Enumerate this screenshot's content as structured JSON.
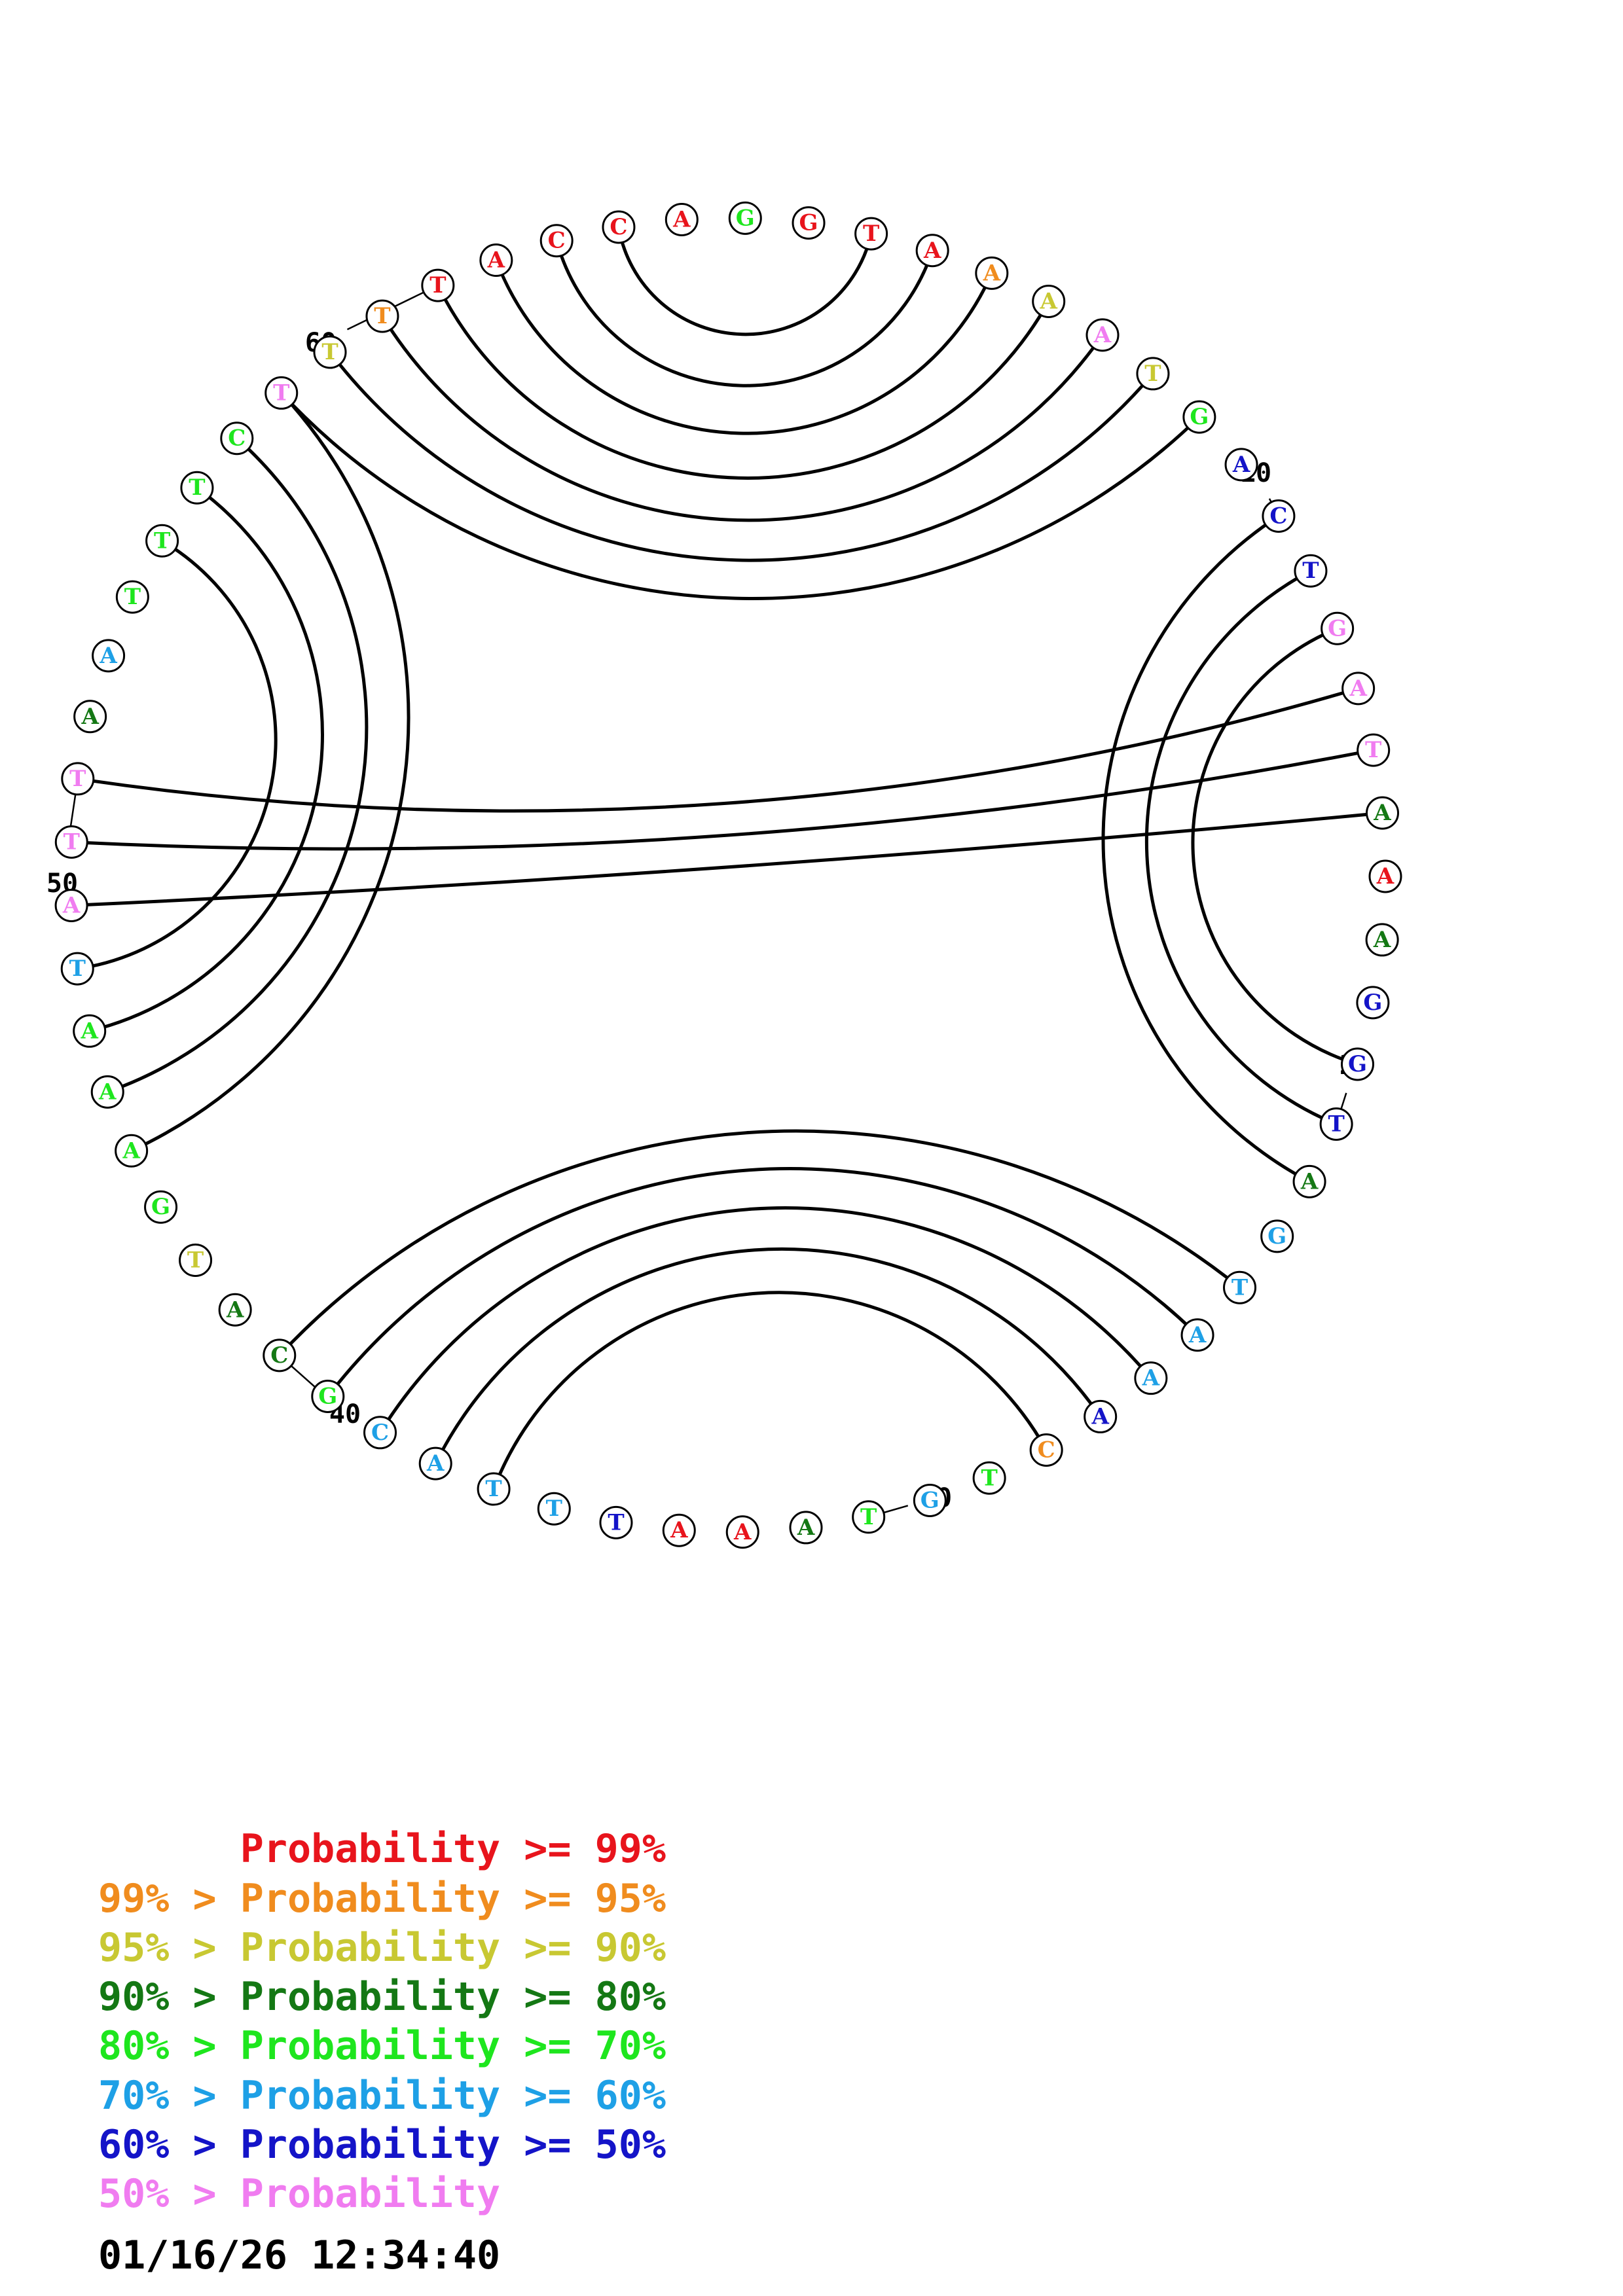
{
  "sequence": [
    {
      "base": "G",
      "cls": 4
    },
    {
      "base": "G",
      "cls": 0
    },
    {
      "base": "T",
      "cls": 0
    },
    {
      "base": "A",
      "cls": 0
    },
    {
      "base": "A",
      "cls": 1
    },
    {
      "base": "A",
      "cls": 2
    },
    {
      "base": "A",
      "cls": 7
    },
    {
      "base": "T",
      "cls": 2
    },
    {
      "base": "G",
      "cls": 4
    },
    {
      "base": "A",
      "cls": 6
    },
    {
      "base": "C",
      "cls": 6
    },
    {
      "base": "T",
      "cls": 6
    },
    {
      "base": "G",
      "cls": 7
    },
    {
      "base": "A",
      "cls": 7
    },
    {
      "base": "T",
      "cls": 7
    },
    {
      "base": "A",
      "cls": 3
    },
    {
      "base": "A",
      "cls": 0
    },
    {
      "base": "A",
      "cls": 3
    },
    {
      "base": "G",
      "cls": 6
    },
    {
      "base": "G",
      "cls": 6
    },
    {
      "base": "T",
      "cls": 6
    },
    {
      "base": "A",
      "cls": 3
    },
    {
      "base": "G",
      "cls": 5
    },
    {
      "base": "T",
      "cls": 5
    },
    {
      "base": "A",
      "cls": 5
    },
    {
      "base": "A",
      "cls": 5
    },
    {
      "base": "A",
      "cls": 6
    },
    {
      "base": "C",
      "cls": 1
    },
    {
      "base": "T",
      "cls": 4
    },
    {
      "base": "G",
      "cls": 5
    },
    {
      "base": "T",
      "cls": 4
    },
    {
      "base": "A",
      "cls": 3
    },
    {
      "base": "A",
      "cls": 0
    },
    {
      "base": "A",
      "cls": 0
    },
    {
      "base": "T",
      "cls": 6
    },
    {
      "base": "T",
      "cls": 5
    },
    {
      "base": "T",
      "cls": 5
    },
    {
      "base": "A",
      "cls": 5
    },
    {
      "base": "C",
      "cls": 5
    },
    {
      "base": "G",
      "cls": 4
    },
    {
      "base": "C",
      "cls": 3
    },
    {
      "base": "A",
      "cls": 3
    },
    {
      "base": "T",
      "cls": 2
    },
    {
      "base": "G",
      "cls": 4
    },
    {
      "base": "A",
      "cls": 4
    },
    {
      "base": "A",
      "cls": 4
    },
    {
      "base": "A",
      "cls": 4
    },
    {
      "base": "T",
      "cls": 5
    },
    {
      "base": "A",
      "cls": 7
    },
    {
      "base": "T",
      "cls": 7
    },
    {
      "base": "T",
      "cls": 7
    },
    {
      "base": "A",
      "cls": 3
    },
    {
      "base": "A",
      "cls": 5
    },
    {
      "base": "T",
      "cls": 4
    },
    {
      "base": "T",
      "cls": 4
    },
    {
      "base": "T",
      "cls": 4
    },
    {
      "base": "C",
      "cls": 4
    },
    {
      "base": "T",
      "cls": 7
    },
    {
      "base": "T",
      "cls": 2
    },
    {
      "base": "T",
      "cls": 1
    },
    {
      "base": "T",
      "cls": 0
    },
    {
      "base": "A",
      "cls": 0
    },
    {
      "base": "C",
      "cls": 0
    },
    {
      "base": "C",
      "cls": 0
    },
    {
      "base": "A",
      "cls": 0
    }
  ],
  "pairs": [
    [
      2,
      63
    ],
    [
      3,
      62
    ],
    [
      4,
      61
    ],
    [
      5,
      60
    ],
    [
      6,
      59
    ],
    [
      7,
      58
    ],
    [
      8,
      57
    ],
    [
      10,
      21
    ],
    [
      11,
      20
    ],
    [
      12,
      19
    ],
    [
      13,
      50
    ],
    [
      14,
      49
    ],
    [
      15,
      48
    ],
    [
      23,
      40
    ],
    [
      24,
      39
    ],
    [
      25,
      38
    ],
    [
      26,
      37
    ],
    [
      27,
      36
    ],
    [
      44,
      57
    ],
    [
      45,
      56
    ],
    [
      46,
      55
    ],
    [
      47,
      54
    ]
  ],
  "position_labels": [
    {
      "text": "10",
      "index": 10
    },
    {
      "text": "20",
      "index": 20
    },
    {
      "text": "30",
      "index": 30
    },
    {
      "text": "40",
      "index": 40
    },
    {
      "text": "50",
      "index": 50
    },
    {
      "text": "60",
      "index": 60
    }
  ],
  "colors": [
    "#e8141c",
    "#f08c1e",
    "#c8c832",
    "#147814",
    "#1ee61e",
    "#1ea0e6",
    "#1414c8",
    "#f07cf0"
  ],
  "legend": [
    {
      "text": "      Probability >= 99%",
      "color": "#e8141c"
    },
    {
      "text": "99% > Probability >= 95%",
      "color": "#f08c1e"
    },
    {
      "text": "95% > Probability >= 90%",
      "color": "#c8c832"
    },
    {
      "text": "90% > Probability >= 80%",
      "color": "#147814"
    },
    {
      "text": "80% > Probability >= 70%",
      "color": "#1ee61e"
    },
    {
      "text": "70% > Probability >= 60%",
      "color": "#1ea0e6"
    },
    {
      "text": "60% > Probability >= 50%",
      "color": "#1414c8"
    },
    {
      "text": "50% > Probability",
      "color": "#f07cf0"
    }
  ],
  "timestamp": "01/16/26 12:34:40"
}
